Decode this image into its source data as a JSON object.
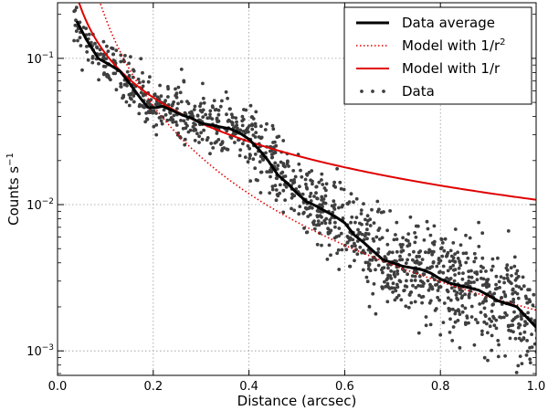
{
  "chart_data": {
    "type": "line",
    "title": "",
    "xlabel": "Distance (arcsec)",
    "ylabel": "Counts s",
    "ylabel_sup": "−1",
    "xlim": [
      0.0,
      1.0
    ],
    "ylim": [
      0.00068,
      0.24
    ],
    "yscale": "log",
    "grid": true,
    "legend_position": "top-right",
    "x_ticks": [
      0.0,
      0.2,
      0.4,
      0.6,
      0.8,
      1.0
    ],
    "x_tick_labels": [
      "0.0",
      "0.2",
      "0.4",
      "0.6",
      "0.8",
      "1.0"
    ],
    "y_ticks": [
      0.001,
      0.01,
      0.1
    ],
    "y_tick_labels": [
      {
        "base": "10",
        "exp": "−3"
      },
      {
        "base": "10",
        "exp": "−2"
      },
      {
        "base": "10",
        "exp": "−1"
      }
    ],
    "series": [
      {
        "name": "Data average",
        "style": "solid",
        "color": "#000000",
        "x": [
          0.04,
          0.06,
          0.085,
          0.11,
          0.13,
          0.15,
          0.165,
          0.18,
          0.19,
          0.205,
          0.22,
          0.24,
          0.26,
          0.28,
          0.3,
          0.32,
          0.34,
          0.36,
          0.38,
          0.4,
          0.42,
          0.44,
          0.46,
          0.48,
          0.5,
          0.52,
          0.54,
          0.56,
          0.58,
          0.6,
          0.62,
          0.64,
          0.66,
          0.68,
          0.7,
          0.72,
          0.74,
          0.76,
          0.78,
          0.8,
          0.82,
          0.84,
          0.86,
          0.88,
          0.9,
          0.92,
          0.94,
          0.96,
          0.98,
          1.0
        ],
        "y": [
          0.18,
          0.135,
          0.1,
          0.09,
          0.082,
          0.068,
          0.058,
          0.05,
          0.046,
          0.046,
          0.047,
          0.044,
          0.041,
          0.039,
          0.036,
          0.035,
          0.034,
          0.033,
          0.031,
          0.028,
          0.024,
          0.02,
          0.016,
          0.014,
          0.012,
          0.0105,
          0.0098,
          0.009,
          0.0083,
          0.0075,
          0.0062,
          0.0055,
          0.0048,
          0.0042,
          0.004,
          0.0038,
          0.0037,
          0.0036,
          0.0034,
          0.0031,
          0.0029,
          0.0028,
          0.0027,
          0.0026,
          0.0024,
          0.0022,
          0.0021,
          0.002,
          0.0017,
          0.00145
        ]
      },
      {
        "name": "Model with 1/r²",
        "legend_text": "Model with 1/r",
        "legend_sup": "2",
        "style": "dotted",
        "color": "#e00000",
        "model": "inverse_square",
        "coefficient": 0.0019,
        "x_range": [
          0.03,
          1.0
        ]
      },
      {
        "name": "Model with 1/r",
        "style": "solid",
        "color": "#e00000",
        "model": "inverse",
        "coefficient": 0.0108,
        "x_range": [
          0.03,
          1.0
        ]
      },
      {
        "name": "Data",
        "style": "markers",
        "color": "#3f3f3f",
        "point_count": 1300,
        "note": "scatter cloud around the data average with log-normal spread"
      }
    ]
  },
  "legend": {
    "items": [
      {
        "label": "Data average"
      },
      {
        "label": "Model with 1/r",
        "sup": "2"
      },
      {
        "label": "Model with 1/r"
      },
      {
        "label": "Data"
      }
    ]
  }
}
